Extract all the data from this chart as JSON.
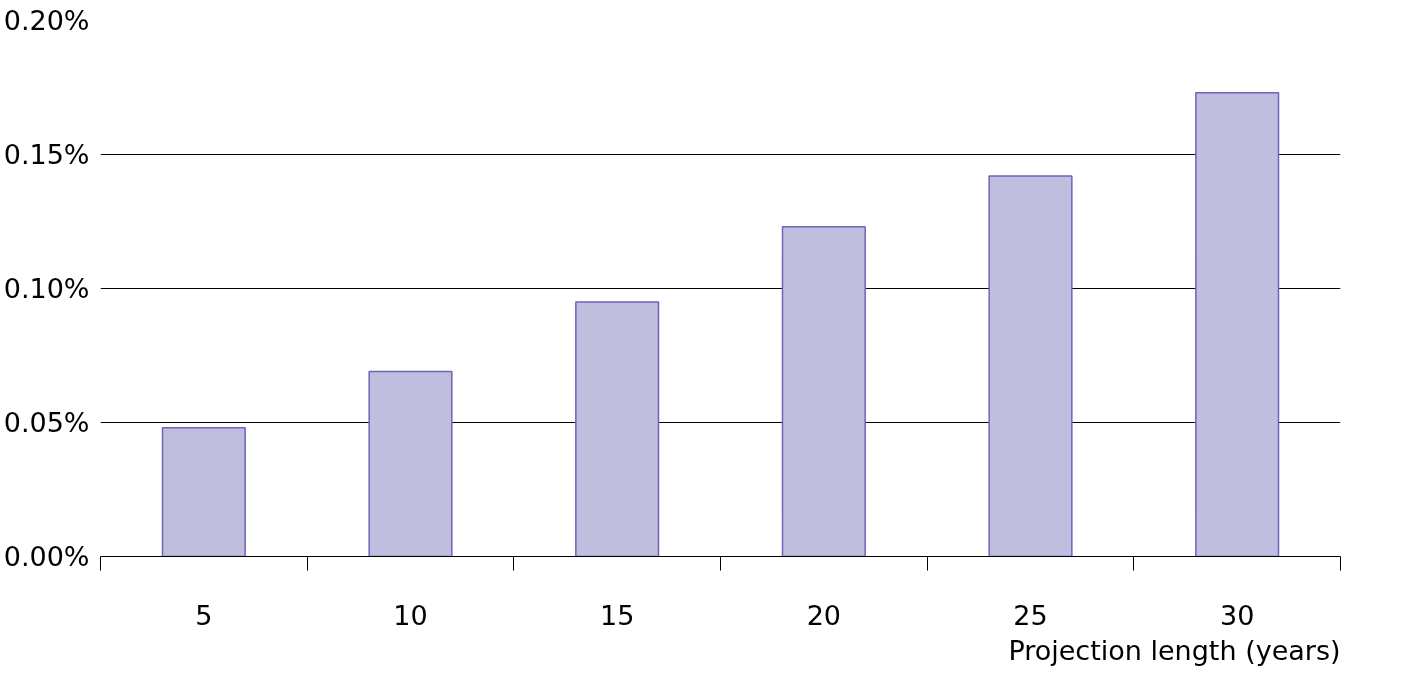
{
  "chart_data": {
    "type": "bar",
    "xlabel": "Projection length (years)",
    "categories": [
      "5",
      "10",
      "15",
      "20",
      "25",
      "30"
    ],
    "values": [
      0.048,
      0.069,
      0.095,
      0.123,
      0.142,
      0.173
    ],
    "color": "#c0bedf",
    "ylim": [
      0,
      0.2
    ],
    "yticks": [
      {
        "value": 0,
        "label": "0.00%"
      },
      {
        "value": 0.05,
        "label": "0.05%"
      },
      {
        "value": 0.1,
        "label": "0.10%"
      },
      {
        "value": 0.15,
        "label": "0.15%"
      },
      {
        "value": 0.2,
        "label": "0.20%"
      }
    ],
    "grid": "y"
  }
}
